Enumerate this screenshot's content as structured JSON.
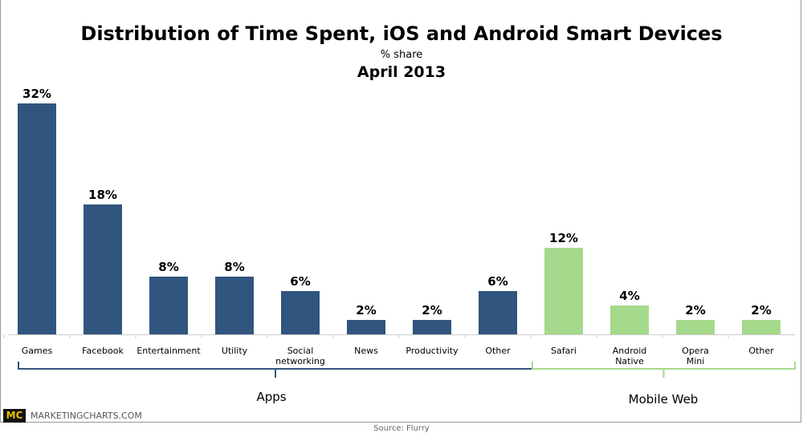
{
  "chart_data": {
    "type": "bar",
    "title": "Distribution of Time Spent, iOS and Android Smart Devices",
    "subtitle": "% share",
    "date": "April 2013",
    "categories": [
      "Games",
      "Facebook",
      "Entertainment",
      "Utility",
      "Social networking",
      "News",
      "Productivity",
      "Other",
      "Safari",
      "Android Native",
      "Opera Mini",
      "Other"
    ],
    "values": [
      32,
      18,
      8,
      8,
      6,
      2,
      2,
      6,
      12,
      4,
      2,
      2
    ],
    "value_labels": [
      "32%",
      "18%",
      "8%",
      "8%",
      "6%",
      "2%",
      "2%",
      "6%",
      "12%",
      "4%",
      "2%",
      "2%"
    ],
    "groups": [
      {
        "name": "Apps",
        "count": 8,
        "color": "#30557e"
      },
      {
        "name": "Mobile Web",
        "count": 4,
        "color": "#a5d98c"
      }
    ],
    "ylim": [
      0,
      32
    ],
    "grid": false
  },
  "footer": {
    "logo": "MC",
    "site": "MARKETINGCHARTS.COM",
    "source": "Source: Flurry"
  }
}
